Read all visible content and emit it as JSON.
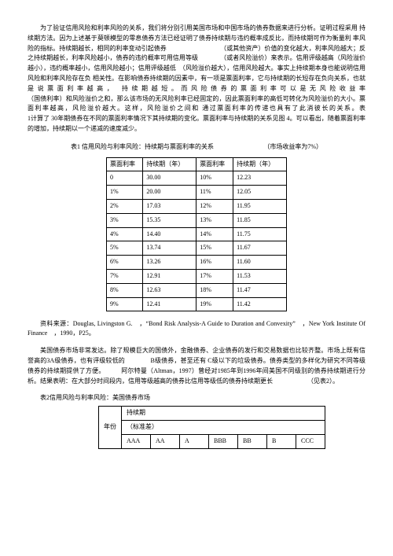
{
  "para1": "为了验证信用风险和利率风险的关系，我们将分别引用美国市场和中国市场的债券数据来进行分析。证明过程采用 持续期方法。因为上述基于莫顿模型的零息债券方法已经证明了债券持续期与违约概率成反比，而持续期可作为衡量利 率风险的指标。持续期越长，相同的利率变动引起债券　　　　　　　　　（或其他资产）价值的变化越大，利率风险越大；反之持续期越长，利率风险越小，债券的违约概率可用信用等级　　　　（或者风险溢价）来表示。信用评级越高（风险溢价越小），违约概率越小，信用风险越小；信用评级越低　（风险溢价越大），信用风险越大。事实上持续期本身也能说明信用风险和利率风险存在负 相关性。在影响债券持续期的因素中，有一项是票面利率，它与持续期的长短存在负向关系，也就是说票面利率越高， 持续期越短。而风险债券的票面利率可以是无风险收益率　　　　　　　　　　　　　　　　　　　　（国债利率）和风险溢价之和，那么该市场的无风险利率已经固定的，因此票面利率的高低可转化为风险溢价的大小。票面利率越高，风险溢价越大。这样，风险溢价之间和 通过票面利率的传递也具有了此消彼长的关系。表　　　　　　　　　　　　　　　　　　　　1计算了 30年期债券在不同的票面利率情况下其持续期的变化。票面利率与持续期的关系见图 4。可以看出，随着票面利率的增加，持续期以一个递减的速度减少。",
  "table1_title_left": "表1 信用风险与利率风险：持续期与票面利率的关系",
  "table1_title_right": "（市场收益率为7%）",
  "t1_headers": [
    "票面利率",
    "持续期（年）",
    "票面利率",
    "持续期（年）"
  ],
  "t1_rows": [
    [
      "0",
      "30.00",
      "10%",
      "12.23"
    ],
    [
      "1%",
      "20.00",
      "11%",
      "12.05"
    ],
    [
      "2%",
      "17.03",
      "12%",
      "11.95"
    ],
    [
      "3%",
      "15.35",
      "13%",
      "11.85"
    ],
    [
      "4%",
      "14.40",
      "14%",
      "11.75"
    ],
    [
      "5%",
      "13.74",
      "15%",
      "11.67"
    ],
    [
      "6%",
      "13.26",
      "16%",
      "11.60"
    ],
    [
      "7%",
      "12.91",
      "17%",
      "11.53"
    ],
    [
      "8%",
      "12.63",
      "18%",
      "11.47"
    ],
    [
      "9%",
      "12.41",
      "19%",
      "11.42"
    ]
  ],
  "reference": "资料来源：Douglas, Livingston G.　，“Bond Risk Analysis-A Guide to Duration and Convexity”　，New York Institute Of Finance　，1990，P25。",
  "para2": "美国债券市场非常发达。除了规模巨大的国债外，金融债券、企业债券的发行和交易数据也比较齐整。市场上既有信誉高的3A级债券，也有评级较低的　　　　B级债券，甚至还有 C级以下的垃圾债券。债券类型的多样化为研究不同等级债券的持续期提供了方便。　　　阿尔特曼（Altman，1997）曾经对1985年到1996年间美国不同级别的债券持续期进行分析。结果表明：在大部分时间段内，信用等级越高的债券比信用等级低的债券持续期更长　　　　　　（见表2）。",
  "table2_title": "表2信用风险与利率风险：美国债券市场",
  "t2": {
    "r1c1": "年份",
    "r1c2": "持续期",
    "r2c1": "（标准差）",
    "r3": [
      "AAA",
      "AA",
      "A",
      "BBB",
      "BB",
      "B",
      "CCC"
    ]
  }
}
